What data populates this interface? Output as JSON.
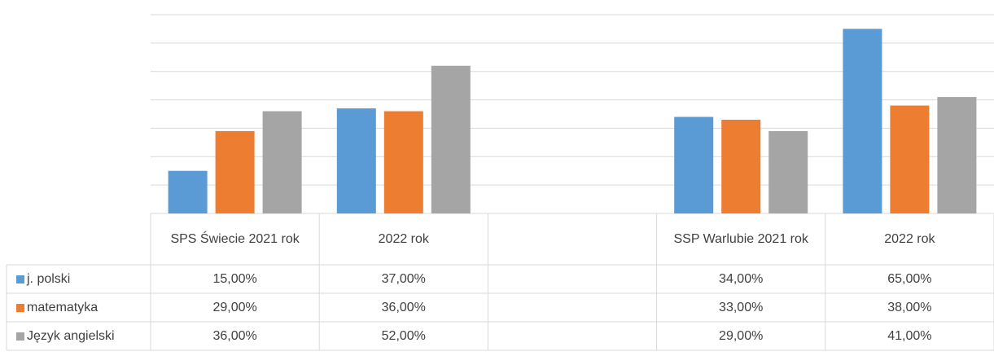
{
  "chart_data": {
    "type": "bar",
    "categories": [
      "SPS Świecie 2021 rok",
      "2022 rok",
      null,
      "SSP Warlubie 2021 rok",
      "2022 rok"
    ],
    "series": [
      {
        "name": "j. polski",
        "color": "#5b9bd5",
        "values": [
          15,
          37,
          null,
          34,
          65
        ],
        "value_labels": [
          "15,00%",
          "37,00%",
          null,
          "34,00%",
          "65,00%"
        ]
      },
      {
        "name": "matematyka",
        "color": "#ed7d31",
        "values": [
          29,
          36,
          null,
          33,
          38
        ],
        "value_labels": [
          "29,00%",
          "36,00%",
          null,
          "33,00%",
          "38,00%"
        ]
      },
      {
        "name": "Język angielski",
        "color": "#a5a5a5",
        "values": [
          36,
          52,
          null,
          29,
          41
        ],
        "value_labels": [
          "36,00%",
          "52,00%",
          null,
          "29,00%",
          "41,00%"
        ]
      }
    ],
    "ylim": [
      0,
      70
    ],
    "yticks": [
      0,
      10,
      20,
      30,
      40,
      50,
      60,
      70
    ],
    "grid": true,
    "data_table": true
  }
}
